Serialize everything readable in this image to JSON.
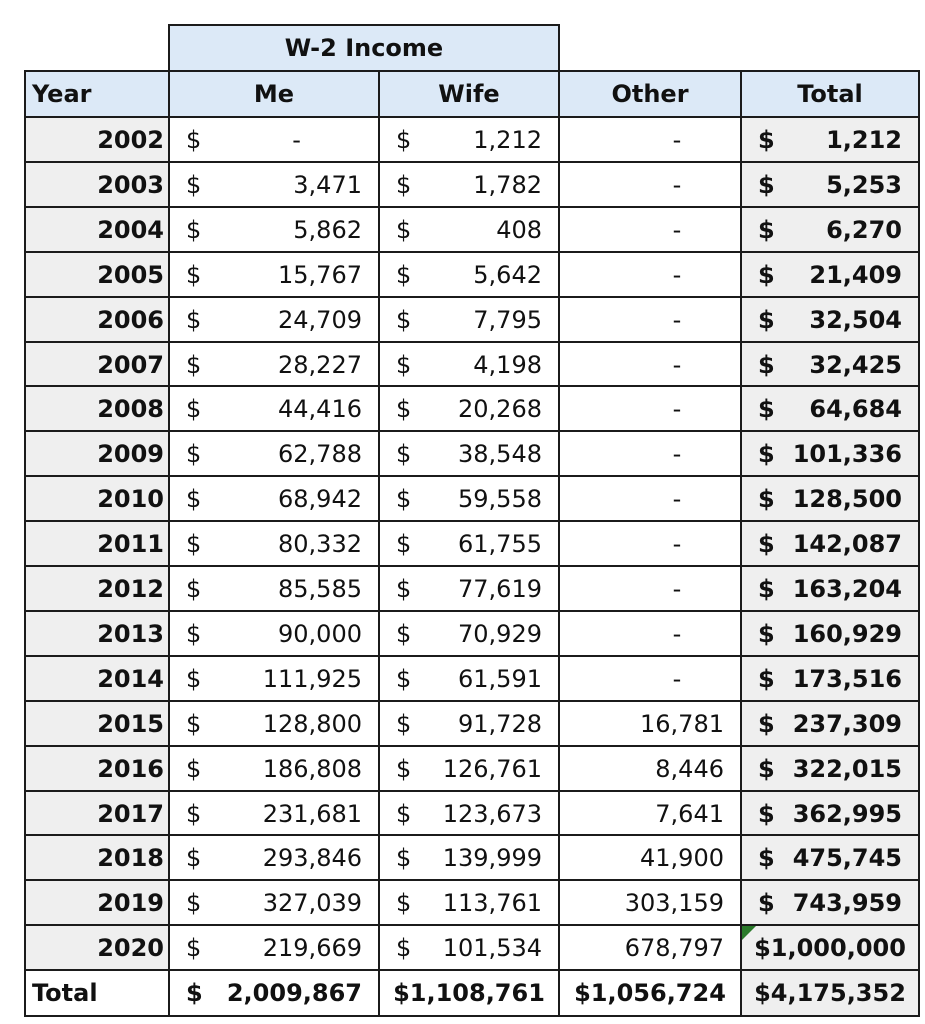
{
  "header": {
    "group_label": "W-2 Income",
    "columns": [
      "Year",
      "Me",
      "Wife",
      "Other",
      "Total"
    ]
  },
  "currency_symbol": "$",
  "rows": [
    {
      "year": "2002",
      "me": "-",
      "wife": "1,212",
      "other": "-",
      "total": "1,212"
    },
    {
      "year": "2003",
      "me": "3,471",
      "wife": "1,782",
      "other": "-",
      "total": "5,253"
    },
    {
      "year": "2004",
      "me": "5,862",
      "wife": "408",
      "other": "-",
      "total": "6,270"
    },
    {
      "year": "2005",
      "me": "15,767",
      "wife": "5,642",
      "other": "-",
      "total": "21,409"
    },
    {
      "year": "2006",
      "me": "24,709",
      "wife": "7,795",
      "other": "-",
      "total": "32,504"
    },
    {
      "year": "2007",
      "me": "28,227",
      "wife": "4,198",
      "other": "-",
      "total": "32,425"
    },
    {
      "year": "2008",
      "me": "44,416",
      "wife": "20,268",
      "other": "-",
      "total": "64,684"
    },
    {
      "year": "2009",
      "me": "62,788",
      "wife": "38,548",
      "other": "-",
      "total": "101,336"
    },
    {
      "year": "2010",
      "me": "68,942",
      "wife": "59,558",
      "other": "-",
      "total": "128,500"
    },
    {
      "year": "2011",
      "me": "80,332",
      "wife": "61,755",
      "other": "-",
      "total": "142,087"
    },
    {
      "year": "2012",
      "me": "85,585",
      "wife": "77,619",
      "other": "-",
      "total": "163,204"
    },
    {
      "year": "2013",
      "me": "90,000",
      "wife": "70,929",
      "other": "-",
      "total": "160,929"
    },
    {
      "year": "2014",
      "me": "111,925",
      "wife": "61,591",
      "other": "-",
      "total": "173,516"
    },
    {
      "year": "2015",
      "me": "128,800",
      "wife": "91,728",
      "other": "16,781",
      "total": "237,309"
    },
    {
      "year": "2016",
      "me": "186,808",
      "wife": "126,761",
      "other": "8,446",
      "total": "322,015"
    },
    {
      "year": "2017",
      "me": "231,681",
      "wife": "123,673",
      "other": "7,641",
      "total": "362,995"
    },
    {
      "year": "2018",
      "me": "293,846",
      "wife": "139,999",
      "other": "41,900",
      "total": "475,745"
    },
    {
      "year": "2019",
      "me": "327,039",
      "wife": "113,761",
      "other": "303,159",
      "total": "743,959"
    },
    {
      "year": "2020",
      "me": "219,669",
      "wife": "101,534",
      "other": "678,797",
      "total": "$1,000,000"
    }
  ],
  "totals": {
    "label": "Total",
    "me": "2,009,867",
    "wife": "$1,108,761",
    "other": "$1,056,724",
    "total": "$4,175,352"
  },
  "colors": {
    "header_fill": "#dce9f7",
    "year_fill": "#efefef",
    "total_fill": "#efefef",
    "comment_marker": "#2a7a2a"
  }
}
